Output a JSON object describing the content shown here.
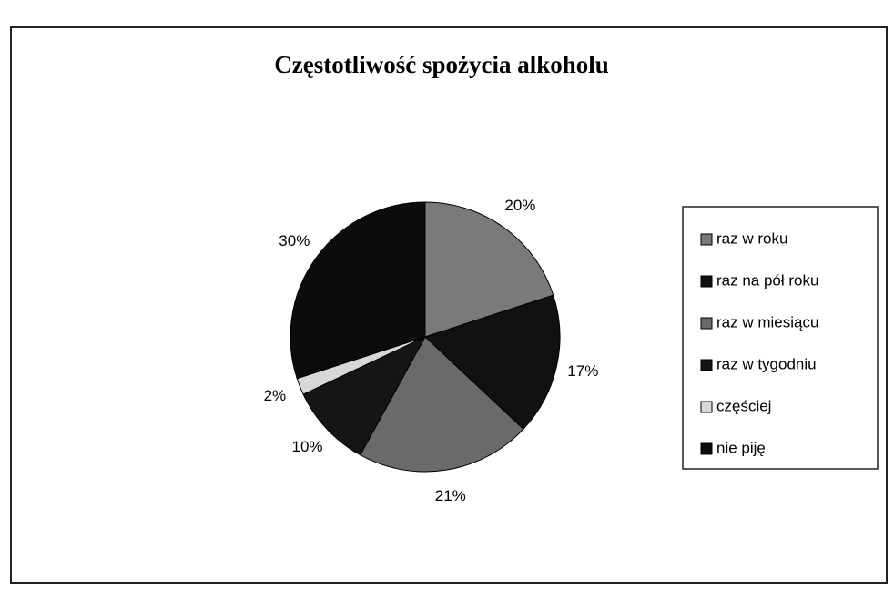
{
  "chart_data": {
    "type": "pie",
    "title": "Częstotliwość spożycia alkoholu",
    "categories": [
      "raz w roku",
      "raz na pół roku",
      "raz w miesiącu",
      "raz w tygodniu",
      "częściej",
      "nie piję"
    ],
    "values": [
      20,
      17,
      21,
      10,
      2,
      30
    ],
    "value_labels": [
      "20%",
      "17%",
      "21%",
      "10%",
      "2%",
      "30%"
    ],
    "colors": [
      "#7a7a7a",
      "#111111",
      "#6a6a6a",
      "#151515",
      "#d8d8d8",
      "#0c0c0c"
    ],
    "legend": "right"
  }
}
